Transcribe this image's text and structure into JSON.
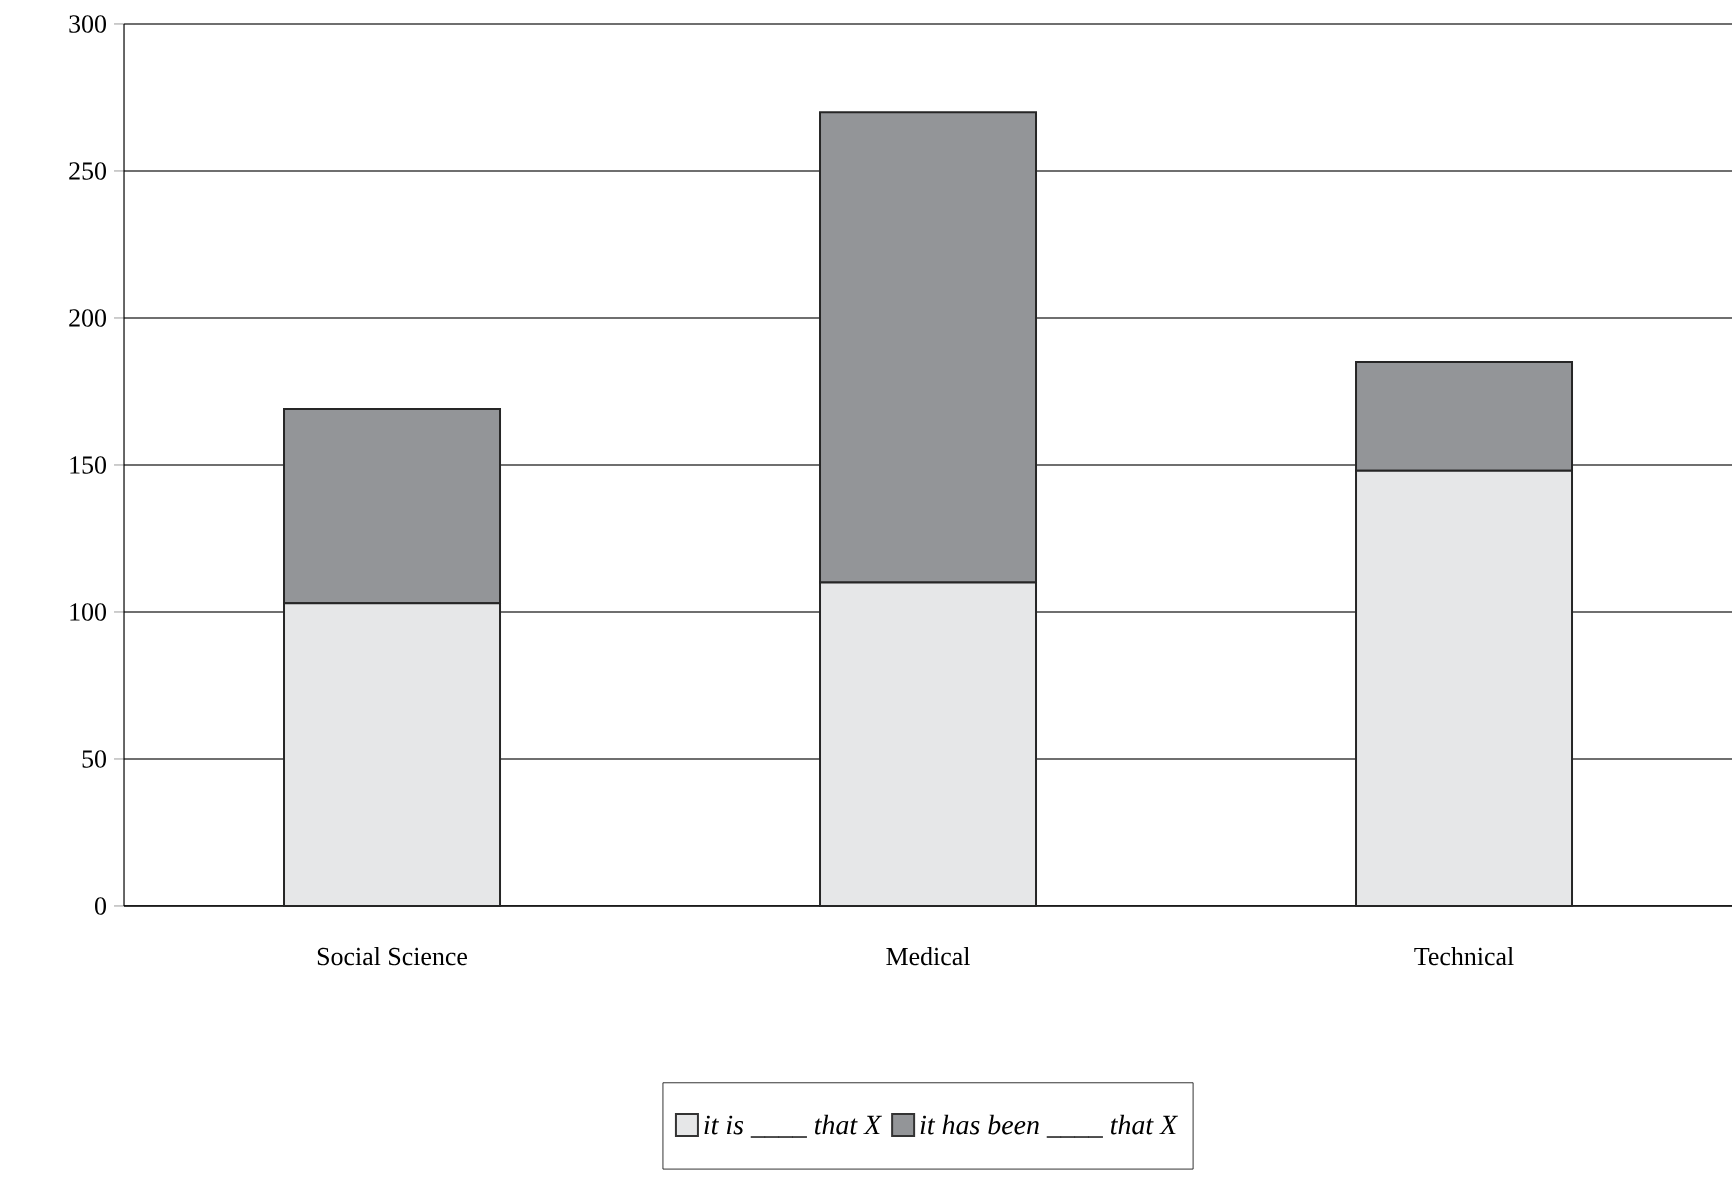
{
  "chart_data": {
    "type": "bar",
    "stacked": true,
    "categories": [
      "Social Science",
      "Medical",
      "Technical"
    ],
    "series": [
      {
        "name": "it is ____ that X",
        "color": "#e6e7e8",
        "values": [
          103,
          110,
          148
        ]
      },
      {
        "name": "it has been ____ that X",
        "color": "#939598",
        "values": [
          66,
          160,
          37
        ]
      }
    ],
    "ylim": [
      0,
      300
    ],
    "yticks": [
      0,
      50,
      100,
      150,
      200,
      250,
      300
    ],
    "grid": "y",
    "legend": "bottom"
  }
}
